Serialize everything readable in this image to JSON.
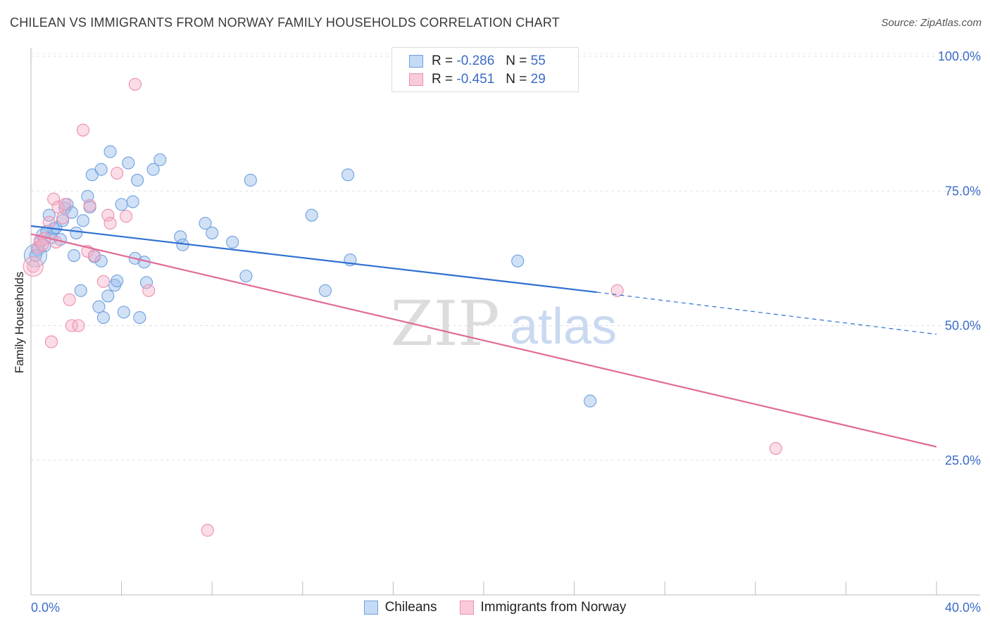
{
  "header": {
    "title": "CHILEAN VS IMMIGRANTS FROM NORWAY FAMILY HOUSEHOLDS CORRELATION CHART",
    "source": "Source: ZipAtlas.com"
  },
  "legend": {
    "r_label": "R =",
    "n_label": "N =",
    "entries": [
      {
        "r": "-0.286",
        "n": "55"
      },
      {
        "r": "-0.451",
        "n": "29"
      }
    ]
  },
  "watermark": {
    "part1": "ZIP",
    "part2": "atlas"
  },
  "chart_data": {
    "type": "scatter",
    "ylabel": "Family Households",
    "xlim": [
      0,
      40
    ],
    "ylim": [
      0,
      100
    ],
    "x_tick_labels": [
      "0.0%",
      "40.0%"
    ],
    "y_ticks": [
      25,
      50,
      75,
      100
    ],
    "y_tick_labels": [
      "25.0%",
      "50.0%",
      "75.0%",
      "100.0%"
    ],
    "grid": true,
    "colors": {
      "chileans": "#6f9fe0",
      "norway": "#ee8eac",
      "chileans_line": "#2f6fd1",
      "norway_line": "#e06b97",
      "tick_text": "#3b6cc7"
    },
    "series": [
      {
        "name": "Chileans",
        "trend": {
          "x0": 0,
          "y0": 68.5,
          "x1": 25,
          "y1": 56.2,
          "dashed_to_x": 40,
          "dashed_to_y": 48.4
        },
        "points": [
          [
            0.3,
            64.0
          ],
          [
            0.4,
            65.5
          ],
          [
            0.5,
            66.8
          ],
          [
            0.7,
            67.5
          ],
          [
            0.8,
            70.5
          ],
          [
            0.9,
            66.3
          ],
          [
            1.0,
            68.0
          ],
          [
            1.1,
            68.2
          ],
          [
            1.3,
            66.0
          ],
          [
            1.4,
            69.5
          ],
          [
            1.5,
            71.8
          ],
          [
            1.6,
            72.5
          ],
          [
            1.8,
            71.0
          ],
          [
            1.9,
            63.0
          ],
          [
            2.0,
            67.2
          ],
          [
            2.2,
            56.5
          ],
          [
            2.3,
            69.5
          ],
          [
            2.5,
            74.0
          ],
          [
            2.6,
            72.0
          ],
          [
            2.7,
            78.0
          ],
          [
            2.8,
            62.8
          ],
          [
            3.0,
            53.5
          ],
          [
            3.1,
            62.0
          ],
          [
            3.1,
            79.0
          ],
          [
            3.2,
            51.5
          ],
          [
            3.4,
            55.5
          ],
          [
            3.5,
            82.3
          ],
          [
            3.7,
            57.5
          ],
          [
            3.8,
            58.3
          ],
          [
            4.0,
            72.5
          ],
          [
            4.1,
            52.5
          ],
          [
            4.3,
            80.2
          ],
          [
            4.5,
            73.0
          ],
          [
            4.6,
            62.5
          ],
          [
            4.7,
            77.0
          ],
          [
            4.8,
            51.5
          ],
          [
            5.0,
            61.8
          ],
          [
            5.1,
            58.0
          ],
          [
            5.4,
            79.0
          ],
          [
            5.7,
            80.8
          ],
          [
            6.6,
            66.5
          ],
          [
            6.7,
            65.0
          ],
          [
            7.7,
            69.0
          ],
          [
            8.0,
            67.2
          ],
          [
            8.9,
            65.5
          ],
          [
            9.5,
            59.2
          ],
          [
            9.7,
            77.0
          ],
          [
            12.4,
            70.5
          ],
          [
            13.0,
            56.5
          ],
          [
            14.0,
            78.0
          ],
          [
            14.1,
            62.2
          ],
          [
            21.5,
            62.0
          ],
          [
            24.7,
            36.0
          ],
          [
            0.2,
            63.0
          ],
          [
            0.6,
            64.8
          ]
        ]
      },
      {
        "name": "Immigrants from Norway",
        "trend": {
          "x0": 0,
          "y0": 67.0,
          "x1": 40,
          "y1": 27.5
        },
        "points": [
          [
            0.1,
            61.0
          ],
          [
            0.3,
            64.5
          ],
          [
            0.4,
            65.8
          ],
          [
            0.6,
            66.2
          ],
          [
            0.8,
            69.2
          ],
          [
            0.9,
            47.0
          ],
          [
            1.0,
            73.5
          ],
          [
            1.2,
            72.0
          ],
          [
            1.4,
            70.0
          ],
          [
            1.5,
            72.5
          ],
          [
            1.7,
            54.8
          ],
          [
            1.8,
            50.0
          ],
          [
            2.1,
            50.0
          ],
          [
            2.3,
            86.3
          ],
          [
            2.5,
            63.8
          ],
          [
            2.6,
            72.3
          ],
          [
            2.8,
            63.0
          ],
          [
            3.2,
            58.2
          ],
          [
            3.4,
            70.5
          ],
          [
            3.5,
            69.0
          ],
          [
            3.8,
            78.3
          ],
          [
            4.2,
            70.3
          ],
          [
            4.6,
            94.8
          ],
          [
            5.2,
            56.5
          ],
          [
            7.8,
            12.0
          ],
          [
            25.9,
            56.5
          ],
          [
            32.9,
            27.2
          ],
          [
            0.5,
            65.0
          ],
          [
            1.1,
            65.5
          ]
        ]
      }
    ]
  }
}
